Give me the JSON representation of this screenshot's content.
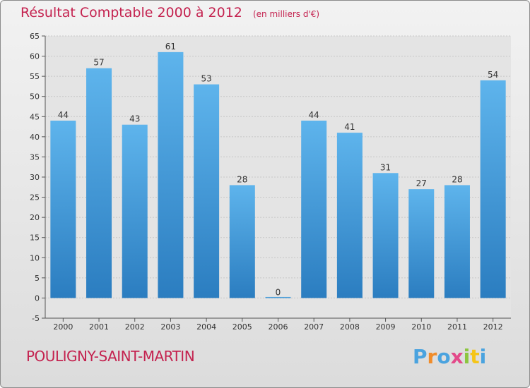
{
  "chart_data": {
    "type": "bar",
    "title": "Résultat Comptable 2000 à 2012",
    "subtitle": "(en milliers d'€)",
    "categories": [
      "2000",
      "2001",
      "2002",
      "2003",
      "2004",
      "2005",
      "2006",
      "2007",
      "2008",
      "2009",
      "2010",
      "2011",
      "2012"
    ],
    "values": [
      44,
      57,
      43,
      61,
      53,
      28,
      0,
      44,
      41,
      31,
      27,
      28,
      54
    ],
    "ylim": [
      -5,
      65
    ],
    "yticks": [
      -5,
      0,
      5,
      10,
      15,
      20,
      25,
      30,
      35,
      40,
      45,
      50,
      55,
      60,
      65
    ],
    "grid": true,
    "bar_color": "#3d97d8",
    "text_color": "#c4224f"
  },
  "footer": {
    "commune": "POULIGNY-SAINT-MARTIN",
    "logo": [
      "P",
      "r",
      "o",
      "x",
      "i",
      "t",
      "i"
    ],
    "logo_colors": [
      "#4aa3df",
      "#f08c2a",
      "#4aa3df",
      "#e34a8a",
      "#8cc63f",
      "#f5c518",
      "#4aa3df"
    ]
  }
}
